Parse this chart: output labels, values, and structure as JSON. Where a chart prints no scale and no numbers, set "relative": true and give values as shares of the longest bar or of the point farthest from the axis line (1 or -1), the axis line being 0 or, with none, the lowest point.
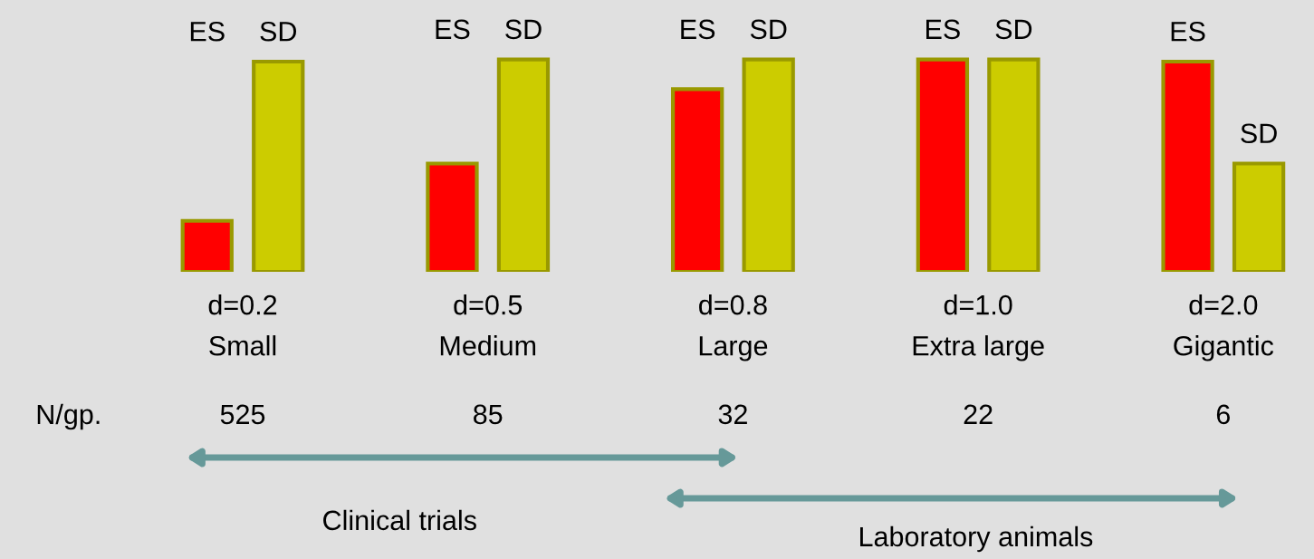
{
  "chart_data": {
    "type": "bar",
    "relative": true,
    "categories": [
      "d=0.2\nSmall",
      "d=0.5\nMedium",
      "d=0.8\nLarge",
      "d=1.0\nExtra large",
      "d=2.0\nGigantic"
    ],
    "series": [
      {
        "name": "ES",
        "color": "#ff0000",
        "values": [
          0.24,
          0.51,
          0.86,
          1.0,
          0.99
        ]
      },
      {
        "name": "SD",
        "color": "#cccc00",
        "values": [
          0.99,
          1.0,
          1.0,
          1.0,
          0.51
        ]
      }
    ],
    "legend": false,
    "annotations": [
      "N/gp.",
      "525",
      "85",
      "32",
      "22",
      "6",
      "Clinical trials",
      "Laboratory animals"
    ]
  }
}
